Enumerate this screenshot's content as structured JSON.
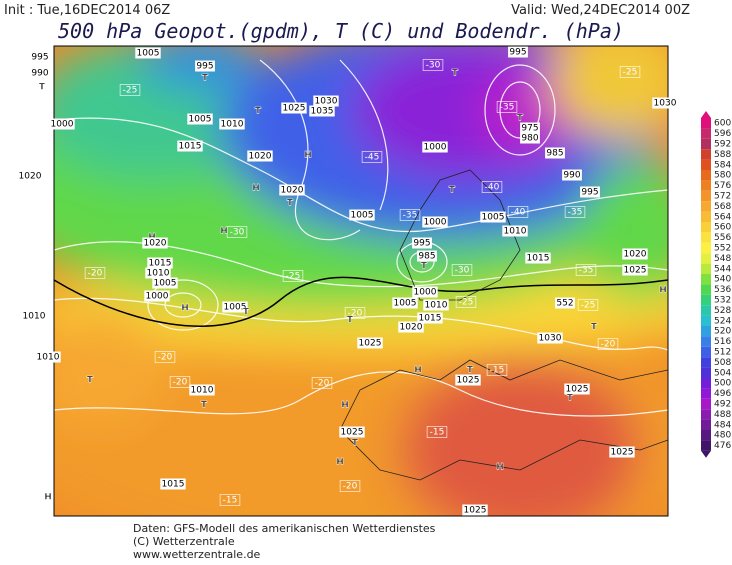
{
  "header": {
    "init": "Init : Tue,16DEC2014 06Z",
    "valid": "Valid: Wed,24DEC2014 00Z",
    "title": "500 hPa Geopot.(gpdm), T (C) und Bodendr. (hPa)"
  },
  "map": {
    "labels": [
      "995",
      "990",
      "T",
      "1005",
      "995",
      "T",
      "-25",
      "1000",
      "1005",
      "1010",
      "1015",
      "1020",
      "1025",
      "1030",
      "1035",
      "H",
      "T",
      "995",
      "T",
      "-30",
      "-25",
      "1030",
      "-35",
      "975",
      "980",
      "985",
      "990",
      "995",
      "T",
      "1000",
      "-40",
      "-45",
      "T",
      "1020",
      "-30",
      "H",
      "1020",
      "T",
      "1005",
      "1000",
      "-35",
      "995",
      "985",
      "T",
      "-30",
      "1005",
      "1010",
      "1015",
      "-40",
      "-35",
      "H",
      "H",
      "-30",
      "1020",
      "-20",
      "1015",
      "1010",
      "1005",
      "1000",
      "H",
      "1005",
      "T",
      "-25",
      "1000",
      "1005",
      "1010",
      "1015",
      "1020",
      "-25",
      "552",
      "-25",
      "1020",
      "-35",
      "1025",
      "H",
      "-20",
      "T",
      "1010",
      "1010",
      "T",
      "-20",
      "-20",
      "1010",
      "T",
      "1025",
      "H",
      "-20",
      "H",
      "T",
      "-15",
      "1025",
      "1030",
      "-20",
      "T",
      "1025",
      "T",
      "1025",
      "T",
      "H",
      "-15",
      "-20",
      "1015",
      "-15",
      "H",
      "1025",
      "H",
      "1025"
    ]
  },
  "legend": {
    "values": [
      600,
      596,
      592,
      588,
      584,
      580,
      576,
      572,
      568,
      564,
      560,
      556,
      552,
      548,
      544,
      540,
      536,
      532,
      528,
      524,
      520,
      516,
      512,
      508,
      504,
      500,
      496,
      492,
      488,
      484,
      480,
      476
    ],
    "colors": [
      "#e0107a",
      "#c8286e",
      "#b0305e",
      "#d0402c",
      "#e05020",
      "#e86a1c",
      "#ee8020",
      "#f29428",
      "#f6a830",
      "#f8bc34",
      "#fad038",
      "#fce23c",
      "#fcf040",
      "#e4f040",
      "#b8ea3c",
      "#80e040",
      "#50d850",
      "#34d07a",
      "#28c8a8",
      "#28c0d0",
      "#30a0e0",
      "#3880e8",
      "#3c60e8",
      "#4040e0",
      "#5030d8",
      "#7020d8",
      "#9018d8",
      "#a818c8",
      "#8a1cb0",
      "#701c98",
      "#581880",
      "#401468"
    ]
  },
  "footer": {
    "lines": [
      "Daten: GFS-Modell des amerikanischen Wetterdienstes",
      "(C) Wetterzentrale",
      "www.wetterzentrale.de"
    ]
  }
}
